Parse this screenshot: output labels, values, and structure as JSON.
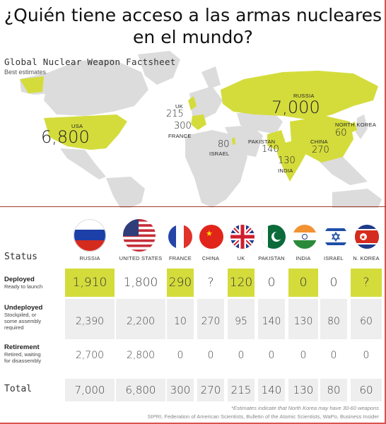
{
  "headline": "¿Quién tiene acceso a las armas nucleares en el mundo?",
  "map": {
    "title": "Global Nuclear Weapon Factsheet",
    "subtitle": "Best estimates",
    "labels": {
      "usa_name": "USA",
      "usa_value": "6,800",
      "russia_name": "RUSSIA",
      "russia_value": "7,000",
      "uk_name": "UK",
      "uk_value": "215",
      "france_name": "FRANCE",
      "france_value": "300",
      "israel_name": "ISRAEL",
      "israel_value": "80",
      "pakistan_name": "PAKISTAN",
      "pakistan_value": "140",
      "india_name": "INDIA",
      "india_value": "130",
      "china_name": "CHINA",
      "china_value": "270",
      "nk_name": "NORTH KOREA",
      "nk_value": "60"
    }
  },
  "table": {
    "status_header": "Status",
    "columns": [
      "RUSSIA",
      "UNITED STATES",
      "FRANCE",
      "CHINA",
      "UK",
      "PAKISTAN",
      "INDIA",
      "ISRAEL",
      "N. KOREA"
    ],
    "rows": {
      "deployed": {
        "title": "Deployed",
        "sub": "Ready to launch",
        "values": [
          "1,910",
          "1,800",
          "290",
          "?",
          "120",
          "0",
          "0",
          "0",
          "?"
        ]
      },
      "undeployed": {
        "title": "Undeployed",
        "sub1": "Stockpiled, or",
        "sub2": "some assembly",
        "sub3": "required",
        "values": [
          "2,390",
          "2,200",
          "10",
          "270",
          "95",
          "140",
          "130",
          "80",
          "60"
        ]
      },
      "retirement": {
        "title": "Retirement",
        "sub1": "Retired, waiting",
        "sub2": "for disassembly",
        "values": [
          "2,700",
          "2,800",
          "0",
          "0",
          "0",
          "0",
          "0",
          "0",
          "0"
        ]
      },
      "total": {
        "title": "Total",
        "values": [
          "7,000",
          "6,800",
          "300",
          "270",
          "215",
          "140",
          "130",
          "80",
          "60"
        ]
      }
    },
    "deployed_highlight": [
      true,
      false,
      true,
      false,
      true,
      false,
      true,
      false,
      true
    ]
  },
  "footnote": "*Estimates indicate that North Korea may have 30-60 weapons",
  "sources": "SIPRI, Federation of American Scientists, Bulletin of the Atomic Scientists, WaPo, Business Insider",
  "colors": {
    "highlight": "#d4dc3c",
    "land": "#dcdcdc",
    "nuclear_land": "#d4dc3c",
    "divider": "#a23a2a"
  }
}
